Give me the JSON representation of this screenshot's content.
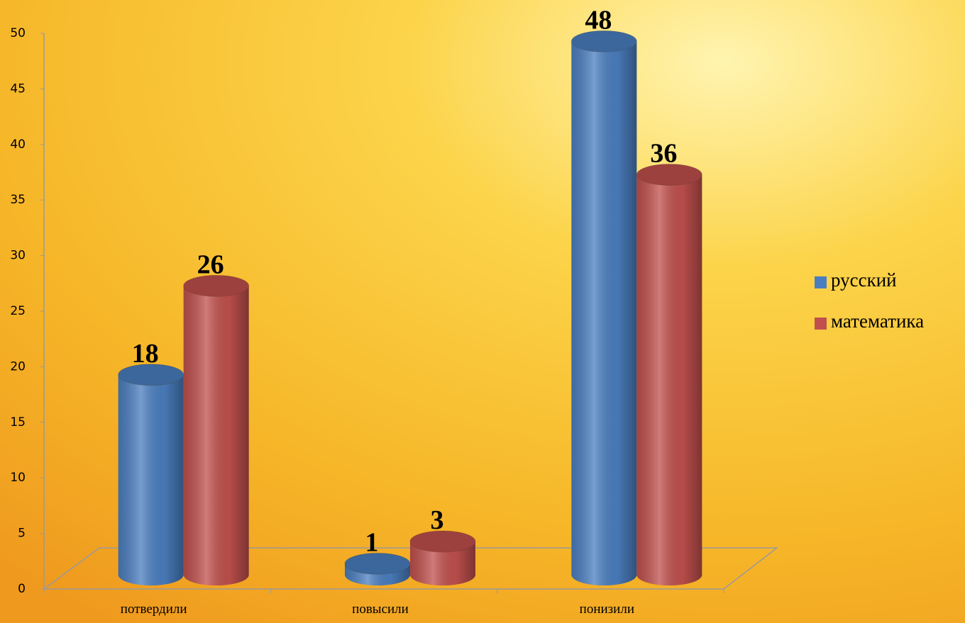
{
  "chart_data": {
    "type": "bar3d",
    "categories": [
      "потвердили",
      "повысили",
      "понизили"
    ],
    "series": [
      {
        "name": "русский",
        "color": "#4a7ebf",
        "values": [
          18,
          1,
          48
        ]
      },
      {
        "name": "математика",
        "color": "#c0504d",
        "values": [
          26,
          3,
          36
        ]
      }
    ],
    "ylim": [
      0,
      50
    ],
    "yticks": [
      0,
      5,
      10,
      15,
      20,
      25,
      30,
      35,
      40,
      45,
      50
    ],
    "legend": "right"
  }
}
